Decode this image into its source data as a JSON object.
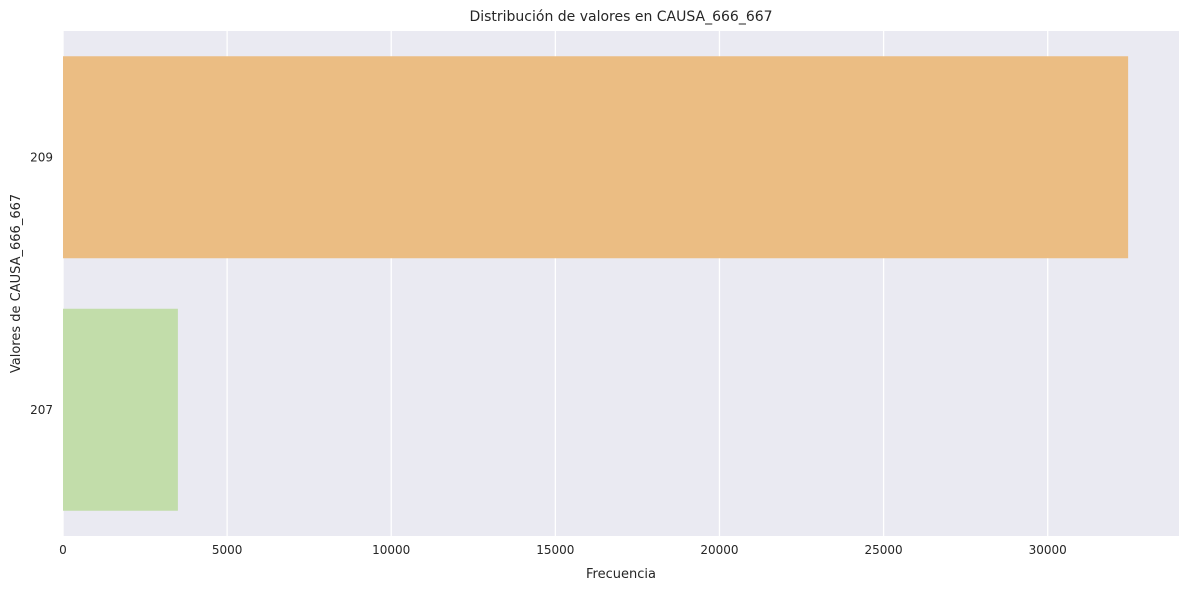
{
  "chart_data": {
    "type": "bar",
    "orientation": "horizontal",
    "title": "Distribución de valores en CAUSA_666_667",
    "xlabel": "Frecuencia",
    "ylabel": "Valores de CAUSA_666_667",
    "categories": [
      "209",
      "207"
    ],
    "values": [
      32450,
      3500
    ],
    "colors": [
      "#ebbd83",
      "#c2ddaa"
    ],
    "xlim": [
      0,
      34000
    ],
    "xticks": [
      0,
      5000,
      10000,
      15000,
      20000,
      25000,
      30000
    ],
    "grid": true,
    "legend": "none",
    "background": "#eaeaf2",
    "grid_color": "#ffffff"
  }
}
